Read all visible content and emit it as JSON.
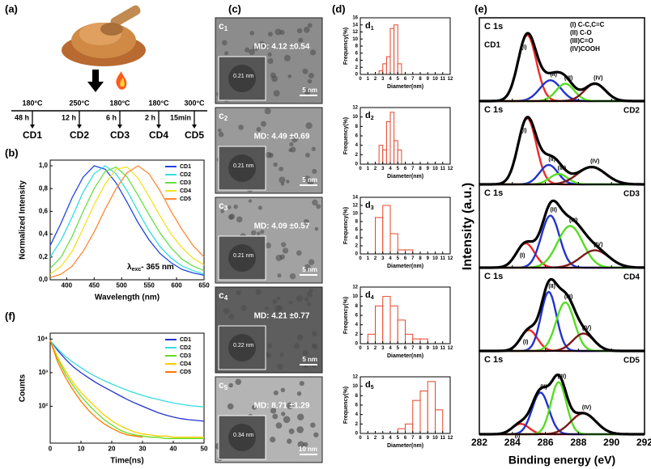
{
  "panel_labels": {
    "a": "(a)",
    "b": "(b)",
    "c": "(c)",
    "d": "(d)",
    "e": "(e)",
    "f": "(f)"
  },
  "synthesis": {
    "temperatures": [
      "180°C",
      "250°C",
      "180°C",
      "180°C",
      "300°C"
    ],
    "times": [
      "48 h",
      "12 h",
      "6 h",
      "2 h",
      "15min"
    ],
    "products": [
      "CD1",
      "CD2",
      "CD3",
      "CD4",
      "CD5"
    ]
  },
  "tem": [
    {
      "label": "c",
      "sub": "1",
      "md": "MD: 4.12 ±0.54",
      "fringe": "0.21 nm",
      "scale": "5 nm"
    },
    {
      "label": "c",
      "sub": "2",
      "md": "MD: 4.49 ±0.69",
      "fringe": "0.21 nm",
      "scale": "5 nm"
    },
    {
      "label": "c",
      "sub": "3",
      "md": "MD: 4.09 ±0.57",
      "fringe": "0.21 nm",
      "scale": "5 nm"
    },
    {
      "label": "c",
      "sub": "4",
      "md": "MD: 4.21 ±0.77",
      "fringe": "0.22 nm",
      "scale": "5 nm"
    },
    {
      "label": "c",
      "sub": "5",
      "md": "MD: 8.71 ±1.29",
      "fringe": "0.34 nm",
      "scale": "10 nm"
    }
  ],
  "chart_data": [
    {
      "type": "line",
      "xlabel": "Wavelength (nm)",
      "ylabel": "Normalized Intensity",
      "annotation": {
        "text": "λ",
        "sub": "exc",
        "rest": "- 365 nm"
      },
      "x": [
        370,
        390,
        410,
        430,
        450,
        470,
        490,
        510,
        530,
        550,
        570,
        590,
        610,
        630,
        650
      ],
      "xlim": [
        370,
        650
      ],
      "xticks": [
        400,
        450,
        500,
        550,
        600,
        650
      ],
      "ylim": [
        0,
        1.05
      ],
      "yticks": [
        {
          "value": 0,
          "label": "0,0"
        },
        {
          "value": 0.2,
          "label": "0,2"
        },
        {
          "value": 0.4,
          "label": "0,4"
        },
        {
          "value": 0.6,
          "label": "0,6"
        },
        {
          "value": 0.8,
          "label": "0,8"
        },
        {
          "value": 1,
          "label": "1,0"
        }
      ],
      "legend_position": "top-right",
      "series": [
        {
          "name": "CD1",
          "color": "#2244dd",
          "values": [
            0.3,
            0.5,
            0.72,
            0.9,
            1.0,
            0.97,
            0.85,
            0.68,
            0.5,
            0.35,
            0.23,
            0.15,
            0.09,
            0.06,
            0.04
          ]
        },
        {
          "name": "CD2",
          "color": "#33dede",
          "values": [
            0.2,
            0.35,
            0.55,
            0.77,
            0.93,
            1.0,
            0.93,
            0.78,
            0.6,
            0.43,
            0.29,
            0.19,
            0.12,
            0.08,
            0.05
          ]
        },
        {
          "name": "CD3",
          "color": "#66e044",
          "values": [
            0.1,
            0.2,
            0.38,
            0.6,
            0.8,
            0.95,
            0.99,
            0.9,
            0.74,
            0.57,
            0.41,
            0.28,
            0.18,
            0.12,
            0.08
          ]
        },
        {
          "name": "CD4",
          "color": "#f2e222",
          "values": [
            0.05,
            0.12,
            0.25,
            0.45,
            0.66,
            0.84,
            0.97,
            0.99,
            0.89,
            0.73,
            0.56,
            0.4,
            0.28,
            0.19,
            0.13
          ]
        },
        {
          "name": "CD5",
          "color": "#ff8833",
          "values": [
            0.02,
            0.05,
            0.12,
            0.25,
            0.42,
            0.62,
            0.8,
            0.94,
            1.0,
            0.93,
            0.78,
            0.6,
            0.44,
            0.3,
            0.2
          ]
        }
      ]
    },
    {
      "type": "histogram",
      "title": "d",
      "title_sub": "1",
      "xlabel": "Diameter(nm)",
      "ylabel": "Frequency(%)",
      "color": "#e8442a",
      "bins": [
        2.5,
        3,
        3.5,
        4,
        4.5,
        5,
        5.5
      ],
      "values": [
        1,
        3,
        5,
        13,
        14,
        3
      ],
      "xlim": [
        0,
        12
      ],
      "xticks": [
        0,
        1,
        2,
        3,
        4,
        5,
        6,
        7,
        8,
        9,
        10,
        11,
        12
      ],
      "ylim": [
        0,
        16
      ],
      "yticks": [
        0,
        2,
        4,
        6,
        8,
        10,
        12,
        14,
        16
      ]
    },
    {
      "type": "histogram",
      "title": "d",
      "title_sub": "2",
      "xlabel": "Diameter(nm)",
      "ylabel": "Frequency(%)",
      "color": "#e8442a",
      "bins": [
        2.5,
        3,
        3.5,
        4,
        4.5,
        5,
        5.5
      ],
      "values": [
        4,
        3,
        9,
        11,
        5,
        3
      ],
      "xlim": [
        0,
        12
      ],
      "xticks": [
        0,
        1,
        2,
        3,
        4,
        5,
        6,
        7,
        8,
        9,
        10,
        11,
        12
      ],
      "ylim": [
        0,
        12
      ],
      "yticks": [
        0,
        2,
        4,
        6,
        8,
        10,
        12
      ]
    },
    {
      "type": "histogram",
      "title": "d",
      "title_sub": "3",
      "xlabel": "Diameter(nm)",
      "ylabel": "Frequency(%)",
      "color": "#e8442a",
      "bins": [
        2,
        3,
        4,
        5,
        6,
        7
      ],
      "values": [
        9,
        12,
        5,
        1,
        1
      ],
      "xlim": [
        0,
        12
      ],
      "xticks": [
        0,
        1,
        2,
        3,
        4,
        5,
        6,
        7,
        8,
        9,
        10,
        11,
        12
      ],
      "ylim": [
        0,
        14
      ],
      "yticks": [
        0,
        2,
        4,
        6,
        8,
        10,
        12,
        14
      ]
    },
    {
      "type": "histogram",
      "title": "d",
      "title_sub": "4",
      "xlabel": "Diameter(nm)",
      "ylabel": "Frequency(%)",
      "color": "#e8442a",
      "bins": [
        1,
        2,
        3,
        4,
        5,
        6,
        7,
        8,
        9
      ],
      "values": [
        2,
        8,
        10,
        8,
        5,
        2,
        1,
        1
      ],
      "xlim": [
        0,
        12
      ],
      "xticks": [
        0,
        1,
        2,
        3,
        4,
        5,
        6,
        7,
        8,
        9,
        10,
        11,
        12
      ],
      "ylim": [
        0,
        12
      ],
      "yticks": [
        0,
        2,
        4,
        6,
        8,
        10,
        12
      ]
    },
    {
      "type": "histogram",
      "title": "d",
      "title_sub": "5",
      "xlabel": "Diameter(nm)",
      "ylabel": "Frequency(%)",
      "color": "#e8442a",
      "bins": [
        5,
        6,
        7,
        8,
        9,
        10,
        11
      ],
      "values": [
        1,
        2,
        7,
        9,
        11,
        5
      ],
      "xlim": [
        0,
        12
      ],
      "xticks": [
        0,
        1,
        2,
        3,
        4,
        5,
        6,
        7,
        8,
        9,
        10,
        11,
        12
      ],
      "ylim": [
        0,
        12
      ],
      "yticks": [
        0,
        2,
        4,
        6,
        8,
        10,
        12
      ]
    },
    {
      "type": "xps",
      "xlabel": "Binding energy (eV)",
      "ylabel": "Intensity (a.u.)",
      "xlim": [
        282,
        292
      ],
      "xticks": [
        282,
        284,
        286,
        288,
        290,
        292
      ],
      "ylim": [
        0,
        1.2
      ],
      "envelope_color": "#000000",
      "legend": [
        "(I) C-C,C=C",
        "(II) C-O",
        "(III)C=O",
        "(IV)COOH"
      ],
      "panels": [
        {
          "label": "C 1s",
          "name": "CD1",
          "components": [
            {
              "name": "(I)",
              "color": "#ee2a2a",
              "center": 284.9,
              "height": 0.95,
              "fwhm": 1.3
            },
            {
              "name": "(II)",
              "color": "#2233cc",
              "center": 286.3,
              "height": 0.3,
              "fwhm": 1.5
            },
            {
              "name": "(III)",
              "color": "#55dd22",
              "center": 287.2,
              "height": 0.25,
              "fwhm": 1.3
            },
            {
              "name": "(IV)",
              "color": "#7a1a1a",
              "center": 289.0,
              "height": 0.25,
              "fwhm": 1.5
            }
          ]
        },
        {
          "label": "C 1s",
          "name": "CD2",
          "components": [
            {
              "name": "(I)",
              "color": "#ee2a2a",
              "center": 284.9,
              "height": 0.95,
              "fwhm": 1.3
            },
            {
              "name": "(II)",
              "color": "#2233cc",
              "center": 286.2,
              "height": 0.28,
              "fwhm": 1.3
            },
            {
              "name": "(III)",
              "color": "#55dd22",
              "center": 286.8,
              "height": 0.15,
              "fwhm": 1.3
            },
            {
              "name": "(IV)",
              "color": "#7a1a1a",
              "center": 288.8,
              "height": 0.25,
              "fwhm": 2.0
            }
          ]
        },
        {
          "label": "C 1s",
          "name": "CD3",
          "components": [
            {
              "name": "(I)",
              "color": "#ee2a2a",
              "center": 284.8,
              "height": 0.35,
              "fwhm": 1.3
            },
            {
              "name": "(II)",
              "color": "#2233cc",
              "center": 286.3,
              "height": 0.75,
              "fwhm": 1.3
            },
            {
              "name": "(III)",
              "color": "#55dd22",
              "center": 287.5,
              "height": 0.6,
              "fwhm": 1.8
            },
            {
              "name": "(IV)",
              "color": "#7a1a1a",
              "center": 289.0,
              "height": 0.25,
              "fwhm": 2.0
            }
          ]
        },
        {
          "label": "C 1s",
          "name": "CD4",
          "components": [
            {
              "name": "(I)",
              "color": "#ee2a2a",
              "center": 285.0,
              "height": 0.3,
              "fwhm": 1.2
            },
            {
              "name": "(II)",
              "color": "#2233cc",
              "center": 286.2,
              "height": 0.85,
              "fwhm": 1.1
            },
            {
              "name": "(III)",
              "color": "#55dd22",
              "center": 287.2,
              "height": 0.7,
              "fwhm": 1.3
            },
            {
              "name": "(IV)",
              "color": "#7a1a1a",
              "center": 288.3,
              "height": 0.25,
              "fwhm": 1.5
            }
          ]
        },
        {
          "label": "C 1s",
          "name": "CD5",
          "components": [
            {
              "name": "(I)",
              "color": "#ee2a2a",
              "center": 284.5,
              "height": 0.15,
              "fwhm": 1.2
            },
            {
              "name": "(II)",
              "color": "#2233cc",
              "center": 285.7,
              "height": 0.6,
              "fwhm": 1.2
            },
            {
              "name": "(III)",
              "color": "#55dd22",
              "center": 286.8,
              "height": 0.75,
              "fwhm": 1.1
            },
            {
              "name": "(IV)",
              "color": "#7a1a1a",
              "center": 288.3,
              "height": 0.3,
              "fwhm": 1.8
            }
          ]
        }
      ]
    },
    {
      "type": "line",
      "xlabel": "Time(ns)",
      "ylabel": "Counts",
      "log_y": true,
      "x": [
        0,
        2.5,
        5,
        7.5,
        10,
        12.5,
        15,
        17.5,
        20,
        22.5,
        25,
        27.5,
        30,
        32.5,
        35,
        37.5,
        40,
        42.5,
        45,
        47.5,
        50
      ],
      "xlim": [
        0,
        50
      ],
      "xticks": [
        0,
        10,
        20,
        30,
        40,
        50
      ],
      "ylim": [
        8,
        15000
      ],
      "yticks": [
        {
          "value": 100,
          "label": "10²"
        },
        {
          "value": 1000,
          "label": "10³"
        },
        {
          "value": 10000,
          "label": "10⁴"
        }
      ],
      "legend_position": "top-right",
      "series": [
        {
          "name": "CD1",
          "color": "#2233cc",
          "values": [
            9000,
            4500,
            2500,
            1500,
            1000,
            700,
            500,
            370,
            280,
            210,
            160,
            125,
            100,
            80,
            65,
            55,
            48,
            43,
            40,
            38,
            36
          ]
        },
        {
          "name": "CD2",
          "color": "#33dddd",
          "values": [
            9000,
            5000,
            3000,
            2000,
            1400,
            1000,
            750,
            580,
            460,
            370,
            300,
            250,
            210,
            180,
            160,
            140,
            125,
            115,
            105,
            100,
            95
          ]
        },
        {
          "name": "CD3",
          "color": "#66dd22",
          "values": [
            9000,
            2500,
            900,
            400,
            200,
            110,
            65,
            40,
            28,
            20,
            16,
            14,
            13,
            12,
            12,
            11,
            11,
            11,
            11,
            11,
            11
          ]
        },
        {
          "name": "CD4",
          "color": "#ffcc00",
          "values": [
            9000,
            2800,
            1100,
            500,
            260,
            150,
            90,
            55,
            37,
            27,
            21,
            17,
            15,
            14,
            13,
            13,
            12,
            12,
            12,
            12,
            12
          ]
        },
        {
          "name": "CD5",
          "color": "#ff7700",
          "values": [
            9000,
            2000,
            700,
            300,
            140,
            75,
            45,
            30,
            22,
            17,
            14,
            13,
            12,
            null,
            null,
            null,
            null,
            null,
            null,
            null,
            null
          ]
        }
      ]
    }
  ]
}
